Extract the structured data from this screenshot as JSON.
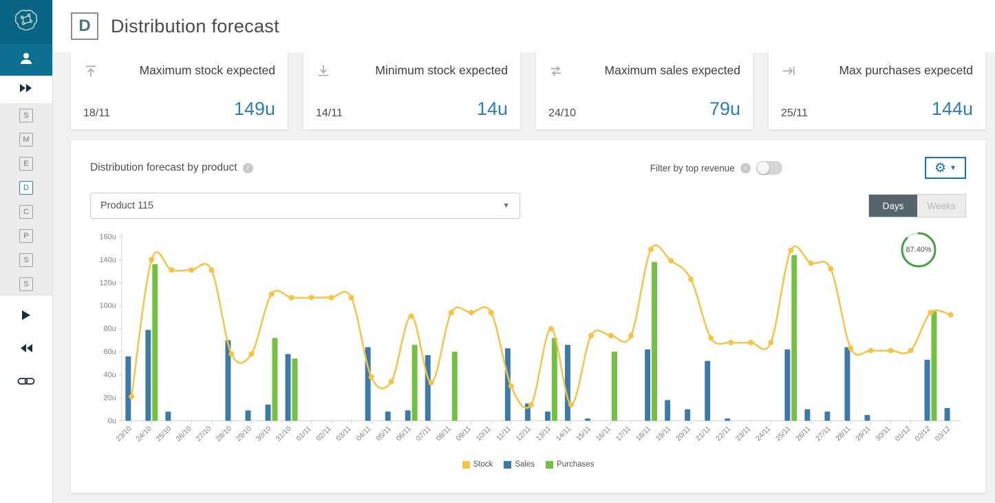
{
  "header": {
    "logo_letter": "D",
    "title": "Distribution forecast"
  },
  "sidebar": {
    "items": [
      {
        "label": "S"
      },
      {
        "label": "M"
      },
      {
        "label": "E"
      },
      {
        "label": "D"
      },
      {
        "label": "C"
      },
      {
        "label": "P"
      },
      {
        "label": "S"
      },
      {
        "label": "S"
      }
    ]
  },
  "kpis": [
    {
      "title": "Maximum stock expected",
      "date": "18/11",
      "value": "149u",
      "icon": "stock-max-icon"
    },
    {
      "title": "Minimum stock expected",
      "date": "14/11",
      "value": "14u",
      "icon": "stock-min-icon"
    },
    {
      "title": "Maximum sales expected",
      "date": "24/10",
      "value": "79u",
      "icon": "sales-max-icon"
    },
    {
      "title": "Max purchases expecetd",
      "date": "25/11",
      "value": "144u",
      "icon": "purchases-max-icon"
    }
  ],
  "panel": {
    "title": "Distribution forecast by product",
    "filter_label": "Filter by top revenue",
    "filter_on": false,
    "product_selected": "Product 115",
    "toggle": {
      "days": "Days",
      "weeks": "Weeks",
      "active": "Days"
    },
    "gauge": {
      "percent": 87.4,
      "label": "87.40%",
      "color": "#43a047"
    }
  },
  "colors": {
    "brand_teal": "#0d7090",
    "kpi_value_blue": "#2d7fb2",
    "segment_active": "#56646e",
    "gear_border_blue": "#1a6fae"
  },
  "chart_data": {
    "type": "combo",
    "title": "",
    "xlabel": "",
    "ylabel": "",
    "ylim": [
      0,
      160
    ],
    "yticks": [
      0,
      20,
      40,
      60,
      80,
      100,
      120,
      140,
      160
    ],
    "ytick_suffix": "u",
    "grid": false,
    "legend_position": "bottom",
    "x": [
      "23/10",
      "24/10",
      "25/10",
      "26/10",
      "27/10",
      "28/10",
      "29/10",
      "30/10",
      "31/10",
      "01/11",
      "02/11",
      "03/11",
      "04/11",
      "05/11",
      "06/11",
      "07/11",
      "08/11",
      "09/11",
      "10/11",
      "11/11",
      "12/11",
      "13/11",
      "14/11",
      "15/11",
      "16/11",
      "17/11",
      "18/11",
      "19/11",
      "20/11",
      "21/11",
      "22/11",
      "23/11",
      "24/11",
      "25/11",
      "26/11",
      "27/11",
      "28/11",
      "29/11",
      "30/11",
      "01/12",
      "02/12",
      "03/12"
    ],
    "series": [
      {
        "name": "Stock",
        "type": "line",
        "color": "#f6c344",
        "values": [
          21,
          140,
          131,
          131,
          131,
          58,
          58,
          110,
          107,
          107,
          107,
          107,
          38,
          34,
          91,
          33,
          94,
          94,
          94,
          30,
          14,
          80,
          14,
          74,
          74,
          74,
          149,
          139,
          123,
          72,
          68,
          68,
          68,
          148,
          137,
          132,
          63,
          61,
          61,
          61,
          94,
          92
        ]
      },
      {
        "name": "Sales",
        "type": "bar",
        "color": "#3d7ba6",
        "values": [
          56,
          79,
          8,
          0,
          0,
          70,
          9,
          14,
          58,
          0,
          0,
          0,
          64,
          8,
          9,
          57,
          0,
          0,
          0,
          63,
          15,
          8,
          66,
          2,
          0,
          0,
          62,
          18,
          10,
          52,
          2,
          0,
          0,
          62,
          10,
          8,
          64,
          5,
          0,
          0,
          53,
          11
        ]
      },
      {
        "name": "Purchases",
        "type": "bar",
        "color": "#72c142",
        "values": [
          0,
          136,
          0,
          0,
          0,
          0,
          0,
          72,
          54,
          0,
          0,
          0,
          0,
          0,
          66,
          0,
          60,
          0,
          0,
          0,
          0,
          72,
          0,
          0,
          60,
          0,
          138,
          0,
          0,
          0,
          0,
          0,
          0,
          144,
          0,
          0,
          0,
          0,
          0,
          0,
          95,
          0
        ]
      }
    ]
  }
}
